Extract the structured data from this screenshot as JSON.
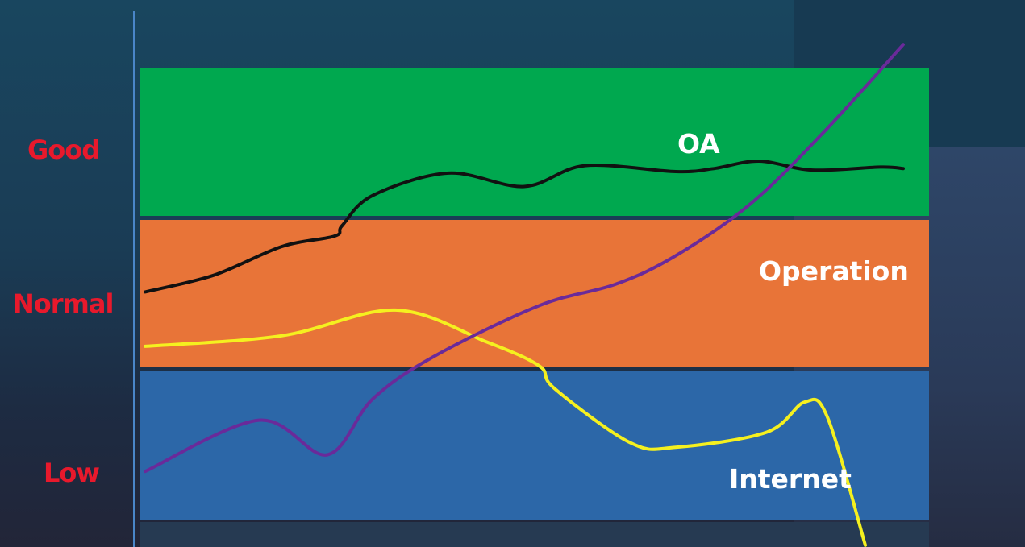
{
  "chart_data": {
    "type": "line",
    "title": "",
    "xlabel": "",
    "ylabel": "",
    "bands": [
      {
        "name": "Good",
        "color": "#00a84f",
        "from": 2,
        "to": 3
      },
      {
        "name": "Normal",
        "color": "#e87438",
        "from": 1,
        "to": 2
      },
      {
        "name": "Low",
        "color": "#2c67a8",
        "from": 0,
        "to": 1
      }
    ],
    "y_levels": [
      "Low",
      "Normal",
      "Good"
    ],
    "ylim": [
      0,
      3
    ],
    "xlim": [
      0,
      100
    ],
    "grid": false,
    "legend": "none",
    "series": [
      {
        "name": "OA",
        "color": "#111111",
        "x": [
          0,
          9,
          18,
          25,
          26,
          30,
          40,
          50,
          58,
          70,
          75,
          81,
          88,
          97,
          100
        ],
        "y": [
          1.51,
          1.62,
          1.81,
          1.88,
          1.95,
          2.15,
          2.3,
          2.21,
          2.35,
          2.31,
          2.33,
          2.38,
          2.32,
          2.34,
          2.33
        ]
      },
      {
        "name": "Operation",
        "color": "#6a2a9a",
        "x": [
          0,
          15,
          24,
          30,
          38,
          52,
          62,
          70,
          80,
          90,
          100
        ],
        "y": [
          0.32,
          0.66,
          0.43,
          0.8,
          1.08,
          1.42,
          1.56,
          1.75,
          2.1,
          2.6,
          3.16
        ]
      },
      {
        "name": "Internet",
        "color": "#f5f01f",
        "x": [
          0,
          18,
          33,
          45,
          52,
          54,
          64,
          70,
          82,
          87,
          90,
          95
        ],
        "y": [
          1.15,
          1.22,
          1.39,
          1.18,
          1.02,
          0.87,
          0.51,
          0.48,
          0.58,
          0.78,
          0.68,
          -0.17
        ]
      }
    ]
  }
}
